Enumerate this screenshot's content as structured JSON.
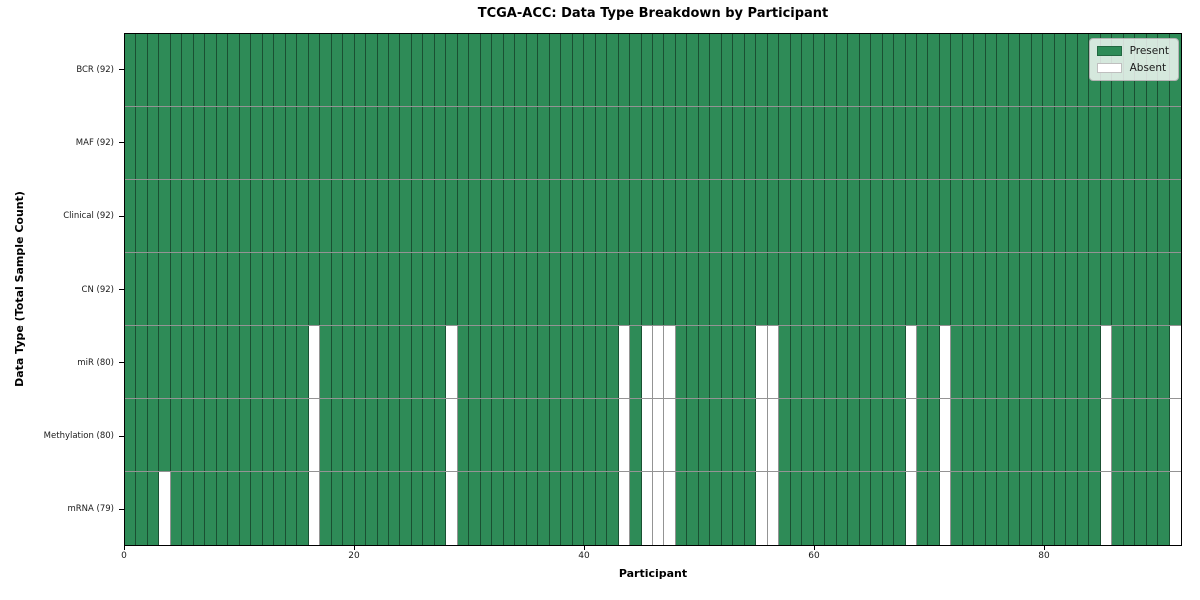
{
  "title": "TCGA-ACC: Data Type Breakdown by Participant",
  "colors": {
    "present": "#2e8b57",
    "absent": "#ffffff",
    "gridline": "rgba(0,0,0,0.42)",
    "spine": "#000000",
    "legend_border": "#b3b3b3"
  },
  "legend": {
    "entries": [
      {
        "label": "Present",
        "color_key": "present"
      },
      {
        "label": "Absent",
        "color_key": "absent"
      }
    ]
  },
  "chart_data": {
    "type": "heatmap",
    "title": "TCGA-ACC: Data Type Breakdown by Participant",
    "xlabel": "Participant",
    "ylabel": "Data Type (Total Sample Count)",
    "n_participants": 92,
    "x_axis": {
      "ticks": [
        0,
        20,
        40,
        60,
        80
      ],
      "range": [
        0,
        92
      ]
    },
    "legend_position": "upper right",
    "grid": true,
    "rows": [
      {
        "label": "BCR (92)",
        "data_type": "BCR",
        "present_count": 92,
        "absent_participants": []
      },
      {
        "label": "MAF (92)",
        "data_type": "MAF",
        "present_count": 92,
        "absent_participants": []
      },
      {
        "label": "Clinical (92)",
        "data_type": "Clinical",
        "present_count": 92,
        "absent_participants": []
      },
      {
        "label": "CN (92)",
        "data_type": "CN",
        "present_count": 92,
        "absent_participants": []
      },
      {
        "label": "miR (80)",
        "data_type": "miR",
        "present_count": 80,
        "absent_participants": [
          16,
          28,
          43,
          45,
          46,
          47,
          55,
          56,
          68,
          71,
          85,
          91
        ]
      },
      {
        "label": "Methylation (80)",
        "data_type": "Methylation",
        "present_count": 80,
        "absent_participants": [
          16,
          28,
          43,
          45,
          46,
          47,
          55,
          56,
          68,
          71,
          85,
          91
        ]
      },
      {
        "label": "mRNA (79)",
        "data_type": "mRNA",
        "present_count": 79,
        "absent_participants": [
          3,
          16,
          28,
          43,
          45,
          46,
          47,
          55,
          56,
          68,
          71,
          85,
          91
        ]
      }
    ]
  }
}
